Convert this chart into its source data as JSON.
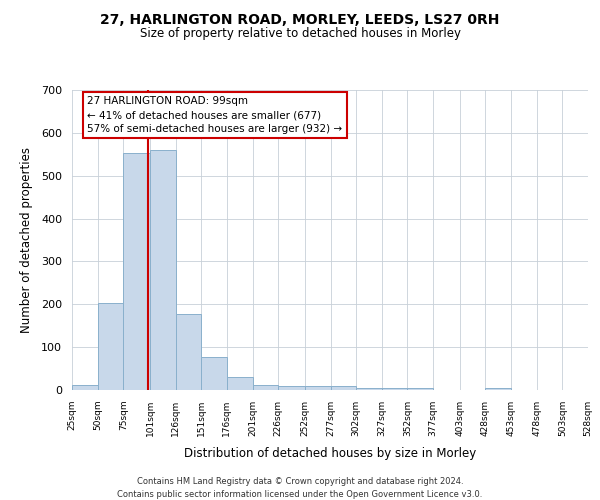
{
  "title1": "27, HARLINGTON ROAD, MORLEY, LEEDS, LS27 0RH",
  "title2": "Size of property relative to detached houses in Morley",
  "xlabel": "Distribution of detached houses by size in Morley",
  "ylabel": "Number of detached properties",
  "bar_left_edges": [
    25,
    50,
    75,
    101,
    126,
    151,
    176,
    201,
    226,
    252,
    277,
    302,
    327,
    352,
    377,
    403,
    428,
    453,
    478,
    503
  ],
  "bar_heights": [
    12,
    204,
    554,
    559,
    178,
    78,
    30,
    12,
    9,
    9,
    10,
    5,
    4,
    5,
    0,
    0,
    4,
    0,
    0,
    0
  ],
  "bar_widths": [
    25,
    25,
    26,
    25,
    25,
    25,
    25,
    25,
    26,
    25,
    25,
    25,
    25,
    25,
    26,
    25,
    25,
    25,
    25,
    25
  ],
  "bar_color": "#c8d8ea",
  "bar_edge_color": "#8ab0cc",
  "tick_labels": [
    "25sqm",
    "50sqm",
    "75sqm",
    "101sqm",
    "126sqm",
    "151sqm",
    "176sqm",
    "201sqm",
    "226sqm",
    "252sqm",
    "277sqm",
    "302sqm",
    "327sqm",
    "352sqm",
    "377sqm",
    "403sqm",
    "428sqm",
    "453sqm",
    "478sqm",
    "503sqm",
    "528sqm"
  ],
  "vline_x": 99,
  "vline_color": "#cc0000",
  "ylim": [
    0,
    700
  ],
  "yticks": [
    0,
    100,
    200,
    300,
    400,
    500,
    600,
    700
  ],
  "annotation_title": "27 HARLINGTON ROAD: 99sqm",
  "annotation_line1": "← 41% of detached houses are smaller (677)",
  "annotation_line2": "57% of semi-detached houses are larger (932) →",
  "footer1": "Contains HM Land Registry data © Crown copyright and database right 2024.",
  "footer2": "Contains public sector information licensed under the Open Government Licence v3.0.",
  "bg_color": "#ffffff",
  "plot_bg_color": "#ffffff"
}
